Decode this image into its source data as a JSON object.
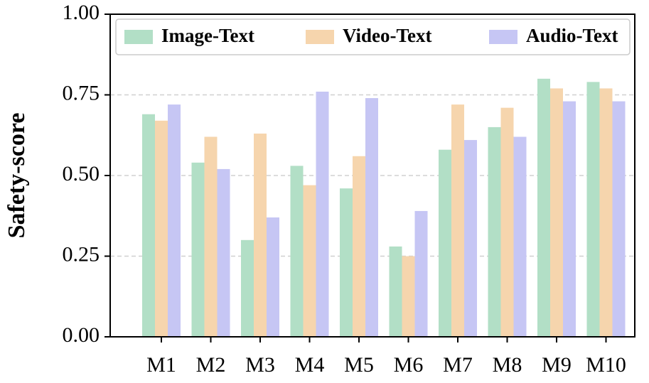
{
  "chart_data": {
    "type": "bar",
    "ylabel": "Safety-score",
    "categories": [
      "M1",
      "M2",
      "M3",
      "M4",
      "M5",
      "M6",
      "M7",
      "M8",
      "M9",
      "M10"
    ],
    "series": [
      {
        "name": "Image-Text",
        "color": "#b2dfc6",
        "values": [
          0.69,
          0.54,
          0.3,
          0.53,
          0.46,
          0.28,
          0.58,
          0.65,
          0.8,
          0.79
        ]
      },
      {
        "name": "Video-Text",
        "color": "#f6d5ad",
        "values": [
          0.67,
          0.62,
          0.63,
          0.47,
          0.56,
          0.25,
          0.72,
          0.71,
          0.77,
          0.77
        ]
      },
      {
        "name": "Audio-Text",
        "color": "#c6c6f4",
        "values": [
          0.72,
          0.52,
          0.37,
          0.76,
          0.74,
          0.39,
          0.61,
          0.62,
          0.73,
          0.73
        ]
      }
    ],
    "ylim": [
      0,
      1
    ],
    "yticks": [
      {
        "value": 0,
        "label": "0.00"
      },
      0.25,
      {
        "value": 0.5,
        "label": "0.50"
      },
      0.75,
      {
        "value": 1,
        "label": "1.00"
      }
    ],
    "grid": true,
    "legend": "top"
  }
}
